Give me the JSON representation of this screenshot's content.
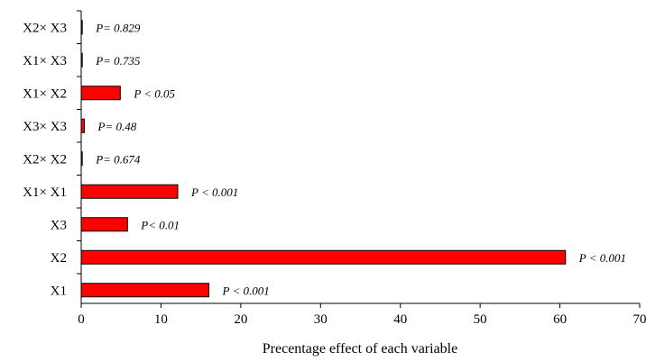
{
  "chart_data": {
    "type": "bar",
    "orientation": "horizontal",
    "title": "",
    "xlabel": "Precentage effect of each variable",
    "ylabel": "",
    "xlim": [
      0,
      70
    ],
    "x_ticks": [
      "0",
      "10",
      "20",
      "30",
      "40",
      "50",
      "60",
      "70"
    ],
    "grid": false,
    "legend": "none",
    "bar_color": "#ff0000",
    "bar_edge_color": "#000000",
    "categories": [
      "X1",
      "X2",
      "X3",
      "X1× X1",
      "X2× X2",
      "X3× X3",
      "X1× X2",
      "X1× X3",
      "X2× X3"
    ],
    "values": [
      16.0,
      60.7,
      5.8,
      12.1,
      0.1,
      0.4,
      4.9,
      0.1,
      0.05
    ],
    "annotations": [
      "P < 0.001",
      "P < 0.001",
      "P< 0.01",
      "P < 0.001",
      "P= 0.674",
      "P= 0.48",
      "P < 0.05",
      "P= 0.735",
      "P= 0.829"
    ]
  }
}
